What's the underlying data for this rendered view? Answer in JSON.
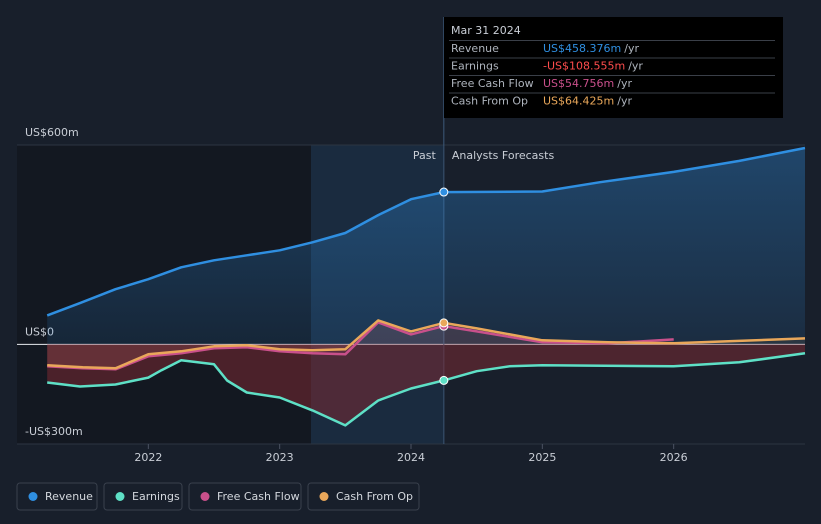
{
  "chart_data": {
    "type": "line",
    "xlim": [
      2021.0,
      2027.0
    ],
    "xticks": [
      2022,
      2023,
      2024,
      2025,
      2026
    ],
    "ylim": [
      -300,
      600
    ],
    "yticks": [
      {
        "value": 600,
        "label": "US$600m"
      },
      {
        "value": 0,
        "label": "US$0"
      },
      {
        "value": -300,
        "label": "-US$300m"
      }
    ],
    "past_label": "Past",
    "forecast_label": "Analysts Forecasts",
    "divider_x": 2024.25,
    "series": [
      {
        "name": "Revenue",
        "color": "#2f8fe1",
        "x": [
          2021.23,
          2021.48,
          2021.75,
          2022.0,
          2022.25,
          2022.5,
          2022.75,
          2023.0,
          2023.25,
          2023.5,
          2023.75,
          2024.0,
          2024.25,
          2025.0,
          2025.44,
          2026.0,
          2026.5,
          2027.0
        ],
        "values": [
          87,
          124,
          166,
          196,
          232,
          253,
          268,
          283,
          307,
          335,
          389,
          437,
          458.376,
          460,
          488,
          519,
          552,
          591
        ]
      },
      {
        "name": "Earnings",
        "color": "#5ee0c6",
        "x": [
          2021.23,
          2021.48,
          2021.75,
          2022.0,
          2022.1,
          2022.25,
          2022.5,
          2022.6,
          2022.75,
          2023.0,
          2023.25,
          2023.5,
          2023.75,
          2024.0,
          2024.25,
          2024.5,
          2024.75,
          2025.0,
          2026.0,
          2026.5,
          2027.0
        ],
        "values": [
          -115,
          -127,
          -121,
          -100,
          -78,
          -48,
          -60,
          -109,
          -145,
          -160,
          -199,
          -244,
          -169,
          -133,
          -108.555,
          -81,
          -66,
          -63,
          -66,
          -54,
          -27
        ]
      },
      {
        "name": "Free Cash Flow",
        "color": "#c9508b",
        "x": [
          2021.23,
          2021.5,
          2021.75,
          2022.0,
          2022.25,
          2022.5,
          2022.75,
          2023.0,
          2023.25,
          2023.5,
          2023.75,
          2024.0,
          2024.25,
          2024.5,
          2025.0,
          2025.5,
          2026.0
        ],
        "values": [
          -66,
          -72,
          -75,
          -36,
          -27,
          -12,
          -9,
          -21,
          -27,
          -30,
          66,
          30,
          54.756,
          39,
          6,
          3,
          15
        ]
      },
      {
        "name": "Cash From Op",
        "color": "#e9a75a",
        "x": [
          2021.23,
          2021.5,
          2021.75,
          2022.0,
          2022.25,
          2022.5,
          2022.75,
          2023.0,
          2023.25,
          2023.5,
          2023.75,
          2024.0,
          2024.25,
          2024.5,
          2025.0,
          2025.5,
          2026.0,
          2027.0
        ],
        "values": [
          -63,
          -69,
          -72,
          -30,
          -21,
          -6,
          -3,
          -15,
          -18,
          -15,
          72,
          39,
          64.425,
          48,
          12,
          6,
          3,
          18
        ]
      }
    ],
    "tooltip": {
      "date": "Mar 31 2024",
      "rows": [
        {
          "label": "Revenue",
          "value": "US$458.376m",
          "unit": "/yr"
        },
        {
          "label": "Earnings",
          "value": "-US$108.555m",
          "unit": "/yr"
        },
        {
          "label": "Free Cash Flow",
          "value": "US$54.756m",
          "unit": "/yr"
        },
        {
          "label": "Cash From Op",
          "value": "US$64.425m",
          "unit": "/yr"
        }
      ]
    }
  }
}
